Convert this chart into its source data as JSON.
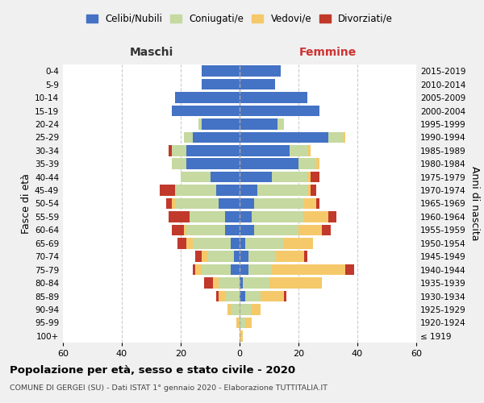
{
  "age_groups": [
    "100+",
    "95-99",
    "90-94",
    "85-89",
    "80-84",
    "75-79",
    "70-74",
    "65-69",
    "60-64",
    "55-59",
    "50-54",
    "45-49",
    "40-44",
    "35-39",
    "30-34",
    "25-29",
    "20-24",
    "15-19",
    "10-14",
    "5-9",
    "0-4"
  ],
  "birth_years": [
    "≤ 1919",
    "1920-1924",
    "1925-1929",
    "1930-1934",
    "1935-1939",
    "1940-1944",
    "1945-1949",
    "1950-1954",
    "1955-1959",
    "1960-1964",
    "1965-1969",
    "1970-1974",
    "1975-1979",
    "1980-1984",
    "1985-1989",
    "1990-1994",
    "1995-1999",
    "2000-2004",
    "2005-2009",
    "2010-2014",
    "2015-2019"
  ],
  "male": {
    "celibi": [
      0,
      0,
      0,
      0,
      0,
      3,
      2,
      3,
      5,
      5,
      7,
      8,
      10,
      18,
      18,
      16,
      13,
      23,
      22,
      13,
      13
    ],
    "coniugati": [
      0,
      0,
      3,
      5,
      7,
      10,
      9,
      13,
      13,
      12,
      15,
      14,
      10,
      5,
      5,
      3,
      1,
      0,
      0,
      0,
      0
    ],
    "vedovi": [
      0,
      1,
      1,
      2,
      2,
      2,
      2,
      2,
      1,
      0,
      1,
      0,
      0,
      0,
      0,
      0,
      0,
      0,
      0,
      0,
      0
    ],
    "divorziati": [
      0,
      0,
      0,
      1,
      3,
      1,
      2,
      3,
      4,
      7,
      2,
      5,
      0,
      0,
      1,
      0,
      0,
      0,
      0,
      0,
      0
    ]
  },
  "female": {
    "nubili": [
      0,
      0,
      0,
      2,
      1,
      3,
      3,
      2,
      5,
      4,
      5,
      6,
      11,
      20,
      17,
      30,
      13,
      27,
      23,
      12,
      14
    ],
    "coniugate": [
      0,
      2,
      4,
      5,
      9,
      8,
      9,
      13,
      15,
      18,
      17,
      17,
      12,
      6,
      6,
      5,
      2,
      0,
      0,
      0,
      0
    ],
    "vedove": [
      1,
      2,
      3,
      8,
      18,
      25,
      10,
      10,
      8,
      8,
      4,
      1,
      1,
      1,
      1,
      1,
      0,
      0,
      0,
      0,
      0
    ],
    "divorziate": [
      0,
      0,
      0,
      1,
      0,
      3,
      1,
      0,
      3,
      3,
      1,
      2,
      3,
      0,
      0,
      0,
      0,
      0,
      0,
      0,
      0
    ]
  },
  "colors": {
    "celibi": "#4472c4",
    "coniugati": "#c5d9a0",
    "vedovi": "#f5c96a",
    "divorziati": "#c0392b"
  },
  "xlim": 60,
  "title": "Popolazione per età, sesso e stato civile - 2020",
  "subtitle": "COMUNE DI GERGEI (SU) - Dati ISTAT 1° gennaio 2020 - Elaborazione TUTTITALIA.IT",
  "ylabel_left": "Fasce di età",
  "ylabel_right": "Anni di nascita",
  "xlabel_left": "Maschi",
  "xlabel_right": "Femmine",
  "bg_color": "#f0f0f0",
  "plot_bg": "#ffffff",
  "femmine_color": "#cc3333"
}
